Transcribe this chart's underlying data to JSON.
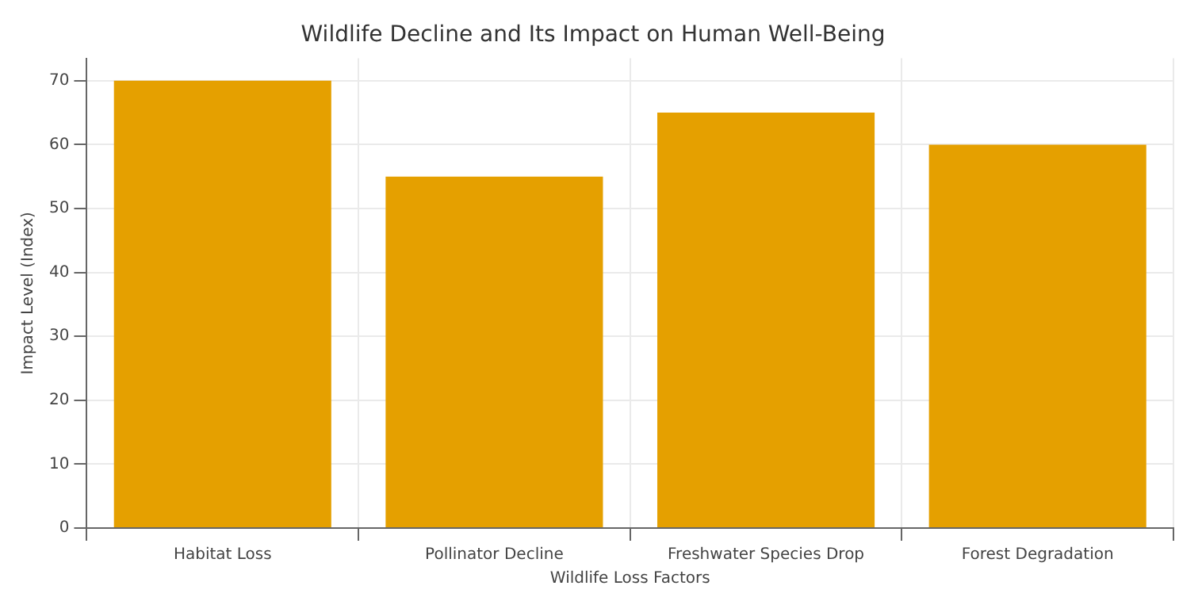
{
  "chart_data": {
    "type": "bar",
    "title": "Wildlife Decline and Its Impact on Human Well-Being",
    "xlabel": "Wildlife Loss Factors",
    "ylabel": "Impact Level (Index)",
    "categories": [
      "Habitat Loss",
      "Pollinator Decline",
      "Freshwater Species Drop",
      "Forest Degradation"
    ],
    "values": [
      70,
      55,
      65,
      60
    ],
    "color": "#e5a000",
    "ylim": [
      0,
      73.5
    ],
    "yticks": [
      0,
      10,
      20,
      30,
      40,
      50,
      60,
      70
    ],
    "grid": true,
    "legend": false
  }
}
